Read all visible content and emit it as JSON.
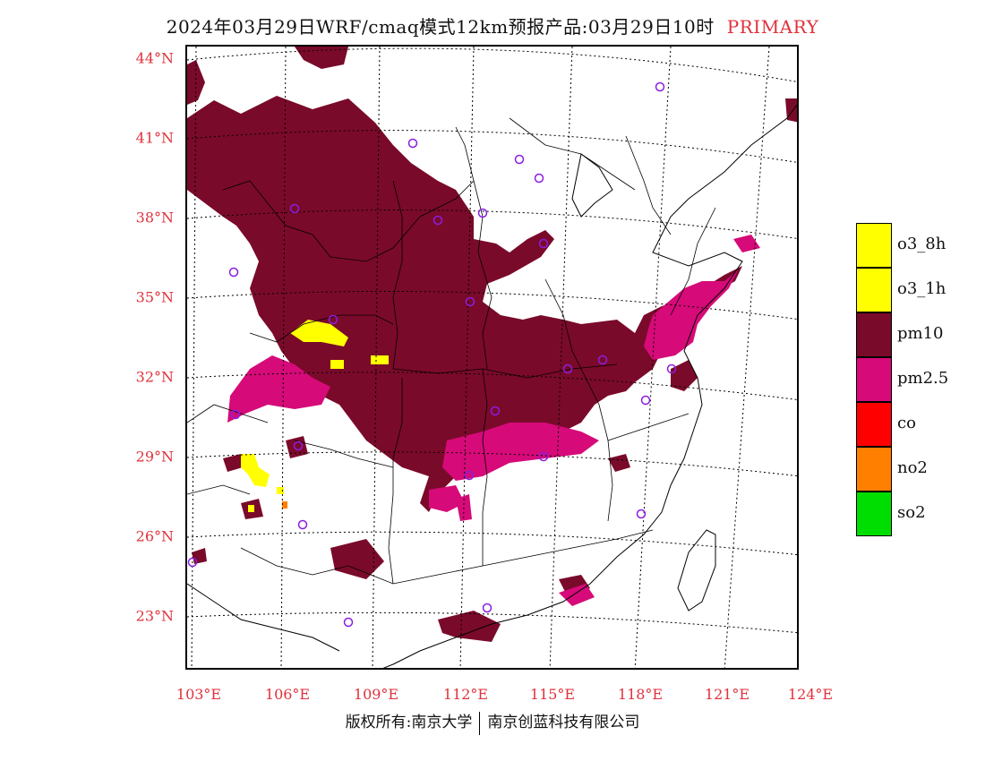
{
  "title": {
    "main": "2024年03月29日WRF/cmaq模式12km预报产品:03月29日10时",
    "primary": "PRIMARY"
  },
  "map": {
    "lat_labels": [
      "44°N",
      "41°N",
      "38°N",
      "35°N",
      "32°N",
      "29°N",
      "26°N",
      "23°N"
    ],
    "lon_labels": [
      "103°E",
      "106°E",
      "109°E",
      "112°E",
      "115°E",
      "118°E",
      "121°E",
      "124°E"
    ]
  },
  "legend": [
    {
      "label": "o3_8h",
      "color": "#ffff00"
    },
    {
      "label": "o3_1h",
      "color": "#ffff00"
    },
    {
      "label": "pm10",
      "color": "#7a0a2a"
    },
    {
      "label": "pm2.5",
      "color": "#d60a78"
    },
    {
      "label": "co",
      "color": "#ff0000"
    },
    {
      "label": "no2",
      "color": "#ff7f00"
    },
    {
      "label": "so2",
      "color": "#00dd00"
    }
  ],
  "footer": {
    "left": "版权所有:南京大学",
    "right": "南京创蓝科技有限公司"
  },
  "colors": {
    "pm10": "#7a0a2a",
    "pm25": "#d60a78",
    "o3": "#ffff00",
    "no2": "#ff7f00",
    "station": "#8a1ee0",
    "label_red": "#e0323c"
  }
}
